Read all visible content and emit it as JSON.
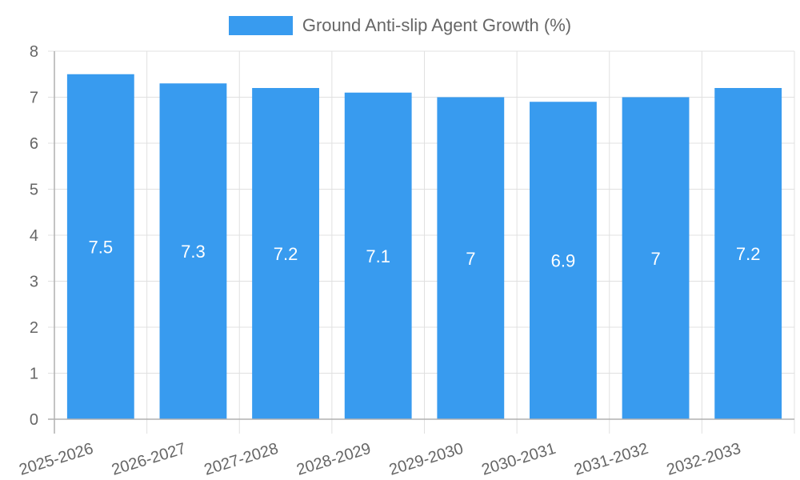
{
  "chart_data": {
    "type": "bar",
    "title": "",
    "legend": [
      "Ground Anti-slip Agent Growth (%)"
    ],
    "legend_position": "top",
    "categories": [
      "2025-2026",
      "2026-2027",
      "2027-2028",
      "2028-2029",
      "2029-2030",
      "2030-2031",
      "2031-2032",
      "2032-2033"
    ],
    "series": [
      {
        "name": "Ground Anti-slip Agent Growth (%)",
        "values": [
          7.5,
          7.3,
          7.2,
          7.1,
          7,
          6.9,
          7,
          7.2
        ],
        "color": "#389BEF"
      }
    ],
    "data_labels": [
      "7.5",
      "7.3",
      "7.2",
      "7.1",
      "7",
      "6.9",
      "7",
      "7.2"
    ],
    "xlabel": "",
    "ylabel": "",
    "ylim": [
      0,
      8
    ],
    "yticks": [
      "0",
      "1",
      "2",
      "3",
      "4",
      "5",
      "6",
      "7",
      "8"
    ],
    "grid": true
  },
  "legend": {
    "label": "Ground Anti-slip Agent Growth (%)",
    "color": "#389BEF"
  }
}
